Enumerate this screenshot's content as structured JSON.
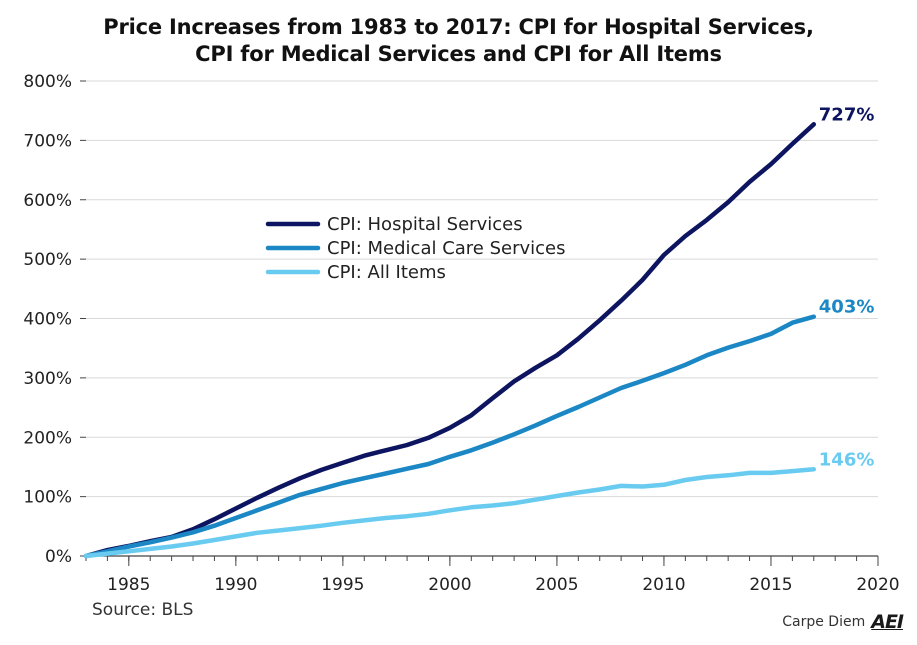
{
  "title_line1": "Price Increases from 1983 to 2017: CPI for Hospital Services,",
  "title_line2": "CPI for Medical Services and CPI for All Items",
  "source": "Source: BLS",
  "brand": {
    "text": "Carpe Diem",
    "logo": "AEI"
  },
  "chart_data": {
    "type": "line",
    "ylim": [
      0,
      800
    ],
    "xlim": [
      1983,
      2020
    ],
    "y_ticks": [
      0,
      100,
      200,
      300,
      400,
      500,
      600,
      700,
      800
    ],
    "y_tick_labels": [
      "0%",
      "100%",
      "200%",
      "300%",
      "400%",
      "500%",
      "600%",
      "700%",
      "800%"
    ],
    "x_ticks": [
      1985,
      1990,
      1995,
      2000,
      2005,
      2010,
      2015,
      2020
    ],
    "x_tick_labels": [
      "1985",
      "1990",
      "1995",
      "2000",
      "2005",
      "2010",
      "2015",
      "2020"
    ],
    "grid": "horizontal",
    "legend_position": "upper-left inside plot",
    "x": [
      1983,
      1984,
      1985,
      1986,
      1987,
      1988,
      1989,
      1990,
      1991,
      1992,
      1993,
      1994,
      1995,
      1996,
      1997,
      1998,
      1999,
      2000,
      2001,
      2002,
      2003,
      2004,
      2005,
      2006,
      2007,
      2008,
      2009,
      2010,
      2011,
      2012,
      2013,
      2014,
      2015,
      2016,
      2017
    ],
    "series": [
      {
        "name": "CPI: Hospital Services",
        "color": "#0d1460",
        "end_label": "727%",
        "values": [
          0,
          10,
          17,
          25,
          32,
          45,
          62,
          80,
          98,
          115,
          131,
          145,
          157,
          169,
          178,
          187,
          199,
          216,
          237,
          266,
          294,
          317,
          338,
          366,
          397,
          430,
          465,
          507,
          539,
          566,
          596,
          630,
          660,
          694,
          727
        ]
      },
      {
        "name": "CPI: Medical Care Services",
        "color": "#1b87c4",
        "end_label": "403%",
        "values": [
          0,
          8,
          16,
          23,
          31,
          40,
          51,
          64,
          77,
          90,
          103,
          113,
          123,
          131,
          139,
          147,
          155,
          167,
          178,
          191,
          205,
          220,
          236,
          251,
          267,
          283,
          295,
          308,
          322,
          338,
          351,
          362,
          374,
          393,
          403
        ]
      },
      {
        "name": "CPI: All Items",
        "color": "#6acbf1",
        "end_label": "146%",
        "values": [
          0,
          4,
          8,
          12,
          16,
          21,
          27,
          33,
          39,
          43,
          47,
          51,
          56,
          60,
          64,
          67,
          71,
          77,
          82,
          85,
          89,
          95,
          101,
          107,
          112,
          118,
          117,
          120,
          128,
          133,
          136,
          140,
          140,
          143,
          146
        ]
      }
    ]
  }
}
